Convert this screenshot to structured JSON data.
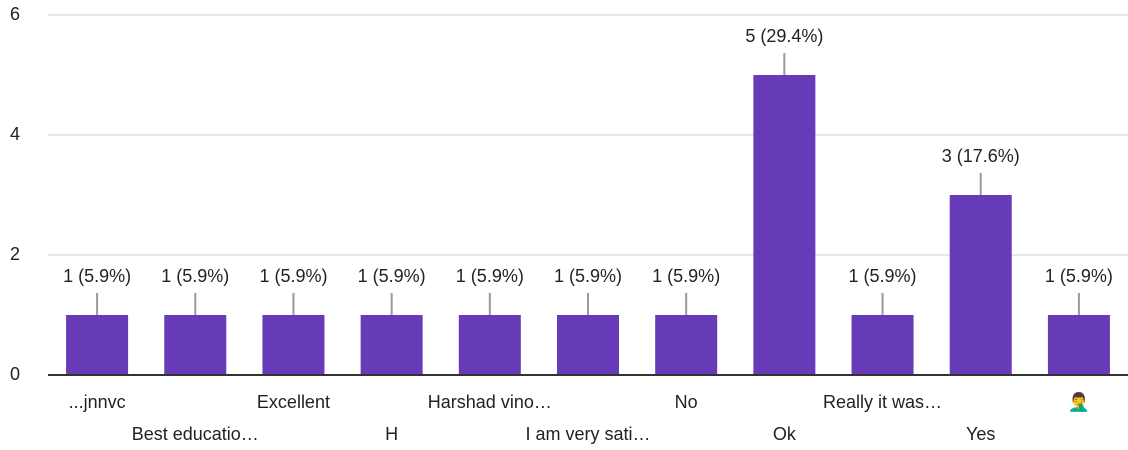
{
  "chart_data": {
    "type": "bar",
    "categories": [
      "...jnnvc",
      "Best educatio…",
      "Excellent",
      "H",
      "Harshad vino…",
      "I am very sati…",
      "No",
      "Ok",
      "Really it was…",
      "Yes",
      "🤦‍♂️"
    ],
    "values": [
      1,
      1,
      1,
      1,
      1,
      1,
      1,
      5,
      1,
      3,
      1
    ],
    "value_labels": [
      "1 (5.9%)",
      "1 (5.9%)",
      "1 (5.9%)",
      "1 (5.9%)",
      "1 (5.9%)",
      "1 (5.9%)",
      "1 (5.9%)",
      "5 (29.4%)",
      "1 (5.9%)",
      "3 (17.6%)",
      "1 (5.9%)"
    ],
    "color": "#673ab7",
    "ylim": [
      0,
      6
    ],
    "yticks": [
      0,
      2,
      4,
      6
    ],
    "grid": true
  }
}
